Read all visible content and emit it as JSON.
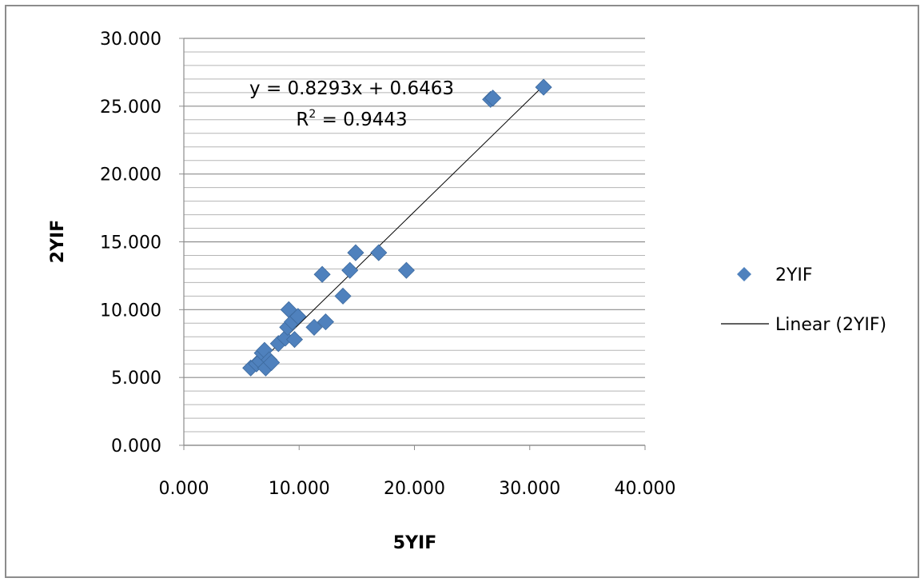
{
  "chart_data": {
    "type": "scatter",
    "title": "",
    "xlabel": "5YIF",
    "ylabel": "2YIF",
    "xlim": [
      0,
      40
    ],
    "ylim": [
      0,
      30
    ],
    "x_ticks": [
      "0.000",
      "10.000",
      "20.000",
      "30.000",
      "40.000"
    ],
    "y_ticks": [
      "0.000",
      "5.000",
      "10.000",
      "15.000",
      "20.000",
      "25.000",
      "30.000"
    ],
    "grid": "horizontal major and minor",
    "legend_position": "right",
    "series": [
      {
        "name": "2YIF",
        "marker": "diamond",
        "color": "#4F81BD",
        "points": [
          [
            5.8,
            5.7
          ],
          [
            6.3,
            6.0
          ],
          [
            6.6,
            6.2
          ],
          [
            6.8,
            6.8
          ],
          [
            7.0,
            7.0
          ],
          [
            7.1,
            5.7
          ],
          [
            7.4,
            6.3
          ],
          [
            7.6,
            6.1
          ],
          [
            8.2,
            7.5
          ],
          [
            8.8,
            7.9
          ],
          [
            9.0,
            8.7
          ],
          [
            9.1,
            10.0
          ],
          [
            9.4,
            9.1
          ],
          [
            9.6,
            7.8
          ],
          [
            9.9,
            9.5
          ],
          [
            11.3,
            8.7
          ],
          [
            12.0,
            12.6
          ],
          [
            12.3,
            9.1
          ],
          [
            13.8,
            11.0
          ],
          [
            14.4,
            12.9
          ],
          [
            14.9,
            14.2
          ],
          [
            16.9,
            14.2
          ],
          [
            19.3,
            12.9
          ],
          [
            26.6,
            25.5
          ],
          [
            26.8,
            25.6
          ],
          [
            31.2,
            26.4
          ]
        ]
      },
      {
        "name": "Linear (2YIF)",
        "kind": "trendline",
        "color": "#000000",
        "slope": 0.8293,
        "intercept": 0.6463,
        "x_range": [
          5.6,
          31.3
        ]
      }
    ],
    "annotations": {
      "equation": "y = 0.8293x + 0.6463",
      "r2_label": "R",
      "r2_sup": "2",
      "r2_value": " = 0.9443"
    }
  }
}
